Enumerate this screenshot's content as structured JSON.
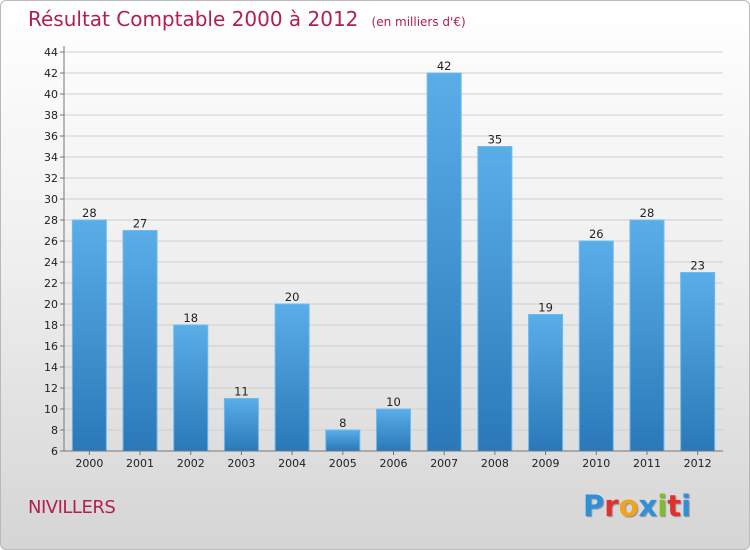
{
  "chart_data": {
    "type": "bar",
    "title": "Résultat Comptable 2000 à 2012",
    "subtitle": "(en milliers d'€)",
    "categories": [
      "2000",
      "2001",
      "2002",
      "2003",
      "2004",
      "2005",
      "2006",
      "2007",
      "2008",
      "2009",
      "2010",
      "2011",
      "2012"
    ],
    "values": [
      28,
      27,
      18,
      11,
      20,
      8,
      10,
      42,
      35,
      19,
      26,
      28,
      23
    ],
    "ylim": [
      6,
      44
    ],
    "yticks": [
      6,
      8,
      10,
      12,
      14,
      16,
      18,
      20,
      22,
      24,
      26,
      28,
      30,
      32,
      34,
      36,
      38,
      40,
      42,
      44
    ],
    "xlabel": "",
    "ylabel": "",
    "grid": true,
    "bar_color": "#4a9ede"
  },
  "commune": "NIVILLERS",
  "logo": {
    "letters": [
      {
        "ch": "P",
        "color": "#2f8fd8"
      },
      {
        "ch": "r",
        "color": "#e0312f"
      },
      {
        "ch": "o",
        "color": "#f2a21c"
      },
      {
        "ch": "x",
        "color": "#2f8fd8"
      },
      {
        "ch": "i",
        "color": "#7cbf2a"
      },
      {
        "ch": "t",
        "color": "#e0312f"
      },
      {
        "ch": "i",
        "color": "#2f8fd8"
      }
    ]
  }
}
